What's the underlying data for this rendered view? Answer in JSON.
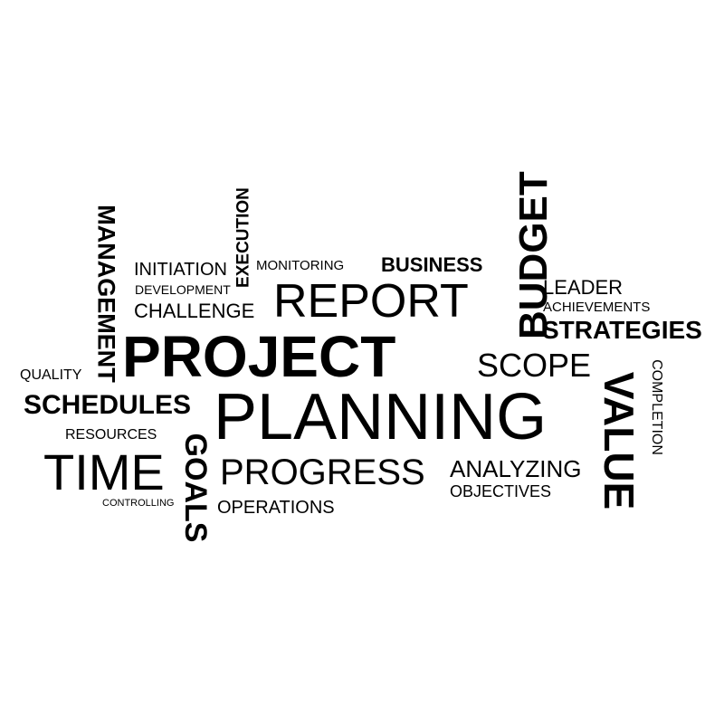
{
  "colors": {
    "background": "#ffffff",
    "text": "#000000"
  },
  "words": {
    "management": "MANAGEMENT",
    "execution": "EXECUTION",
    "budget": "BUDGET",
    "initiation": "INITIATION",
    "monitoring": "MONITORING",
    "business": "BUSINESS",
    "development": "DEVELOPMENT",
    "report": "REPORT",
    "leader": "LEADER",
    "achievements": "ACHIEVEMENTS",
    "challenge": "CHALLENGE",
    "strategies": "STRATEGIES",
    "project": "PROJECT",
    "completion": "COMPLETION",
    "quality": "QUALITY",
    "scope": "SCOPE",
    "value": "VALUE",
    "schedules": "SCHEDULES",
    "planning": "PLANNING",
    "resources": "RESOURCES",
    "goals": "GOALS",
    "time": "TIME",
    "progress": "PROGRESS",
    "analyzing": "ANALYZING",
    "objectives": "OBJECTIVES",
    "controlling": "CONTROLLING",
    "operations": "OPERATIONS"
  }
}
